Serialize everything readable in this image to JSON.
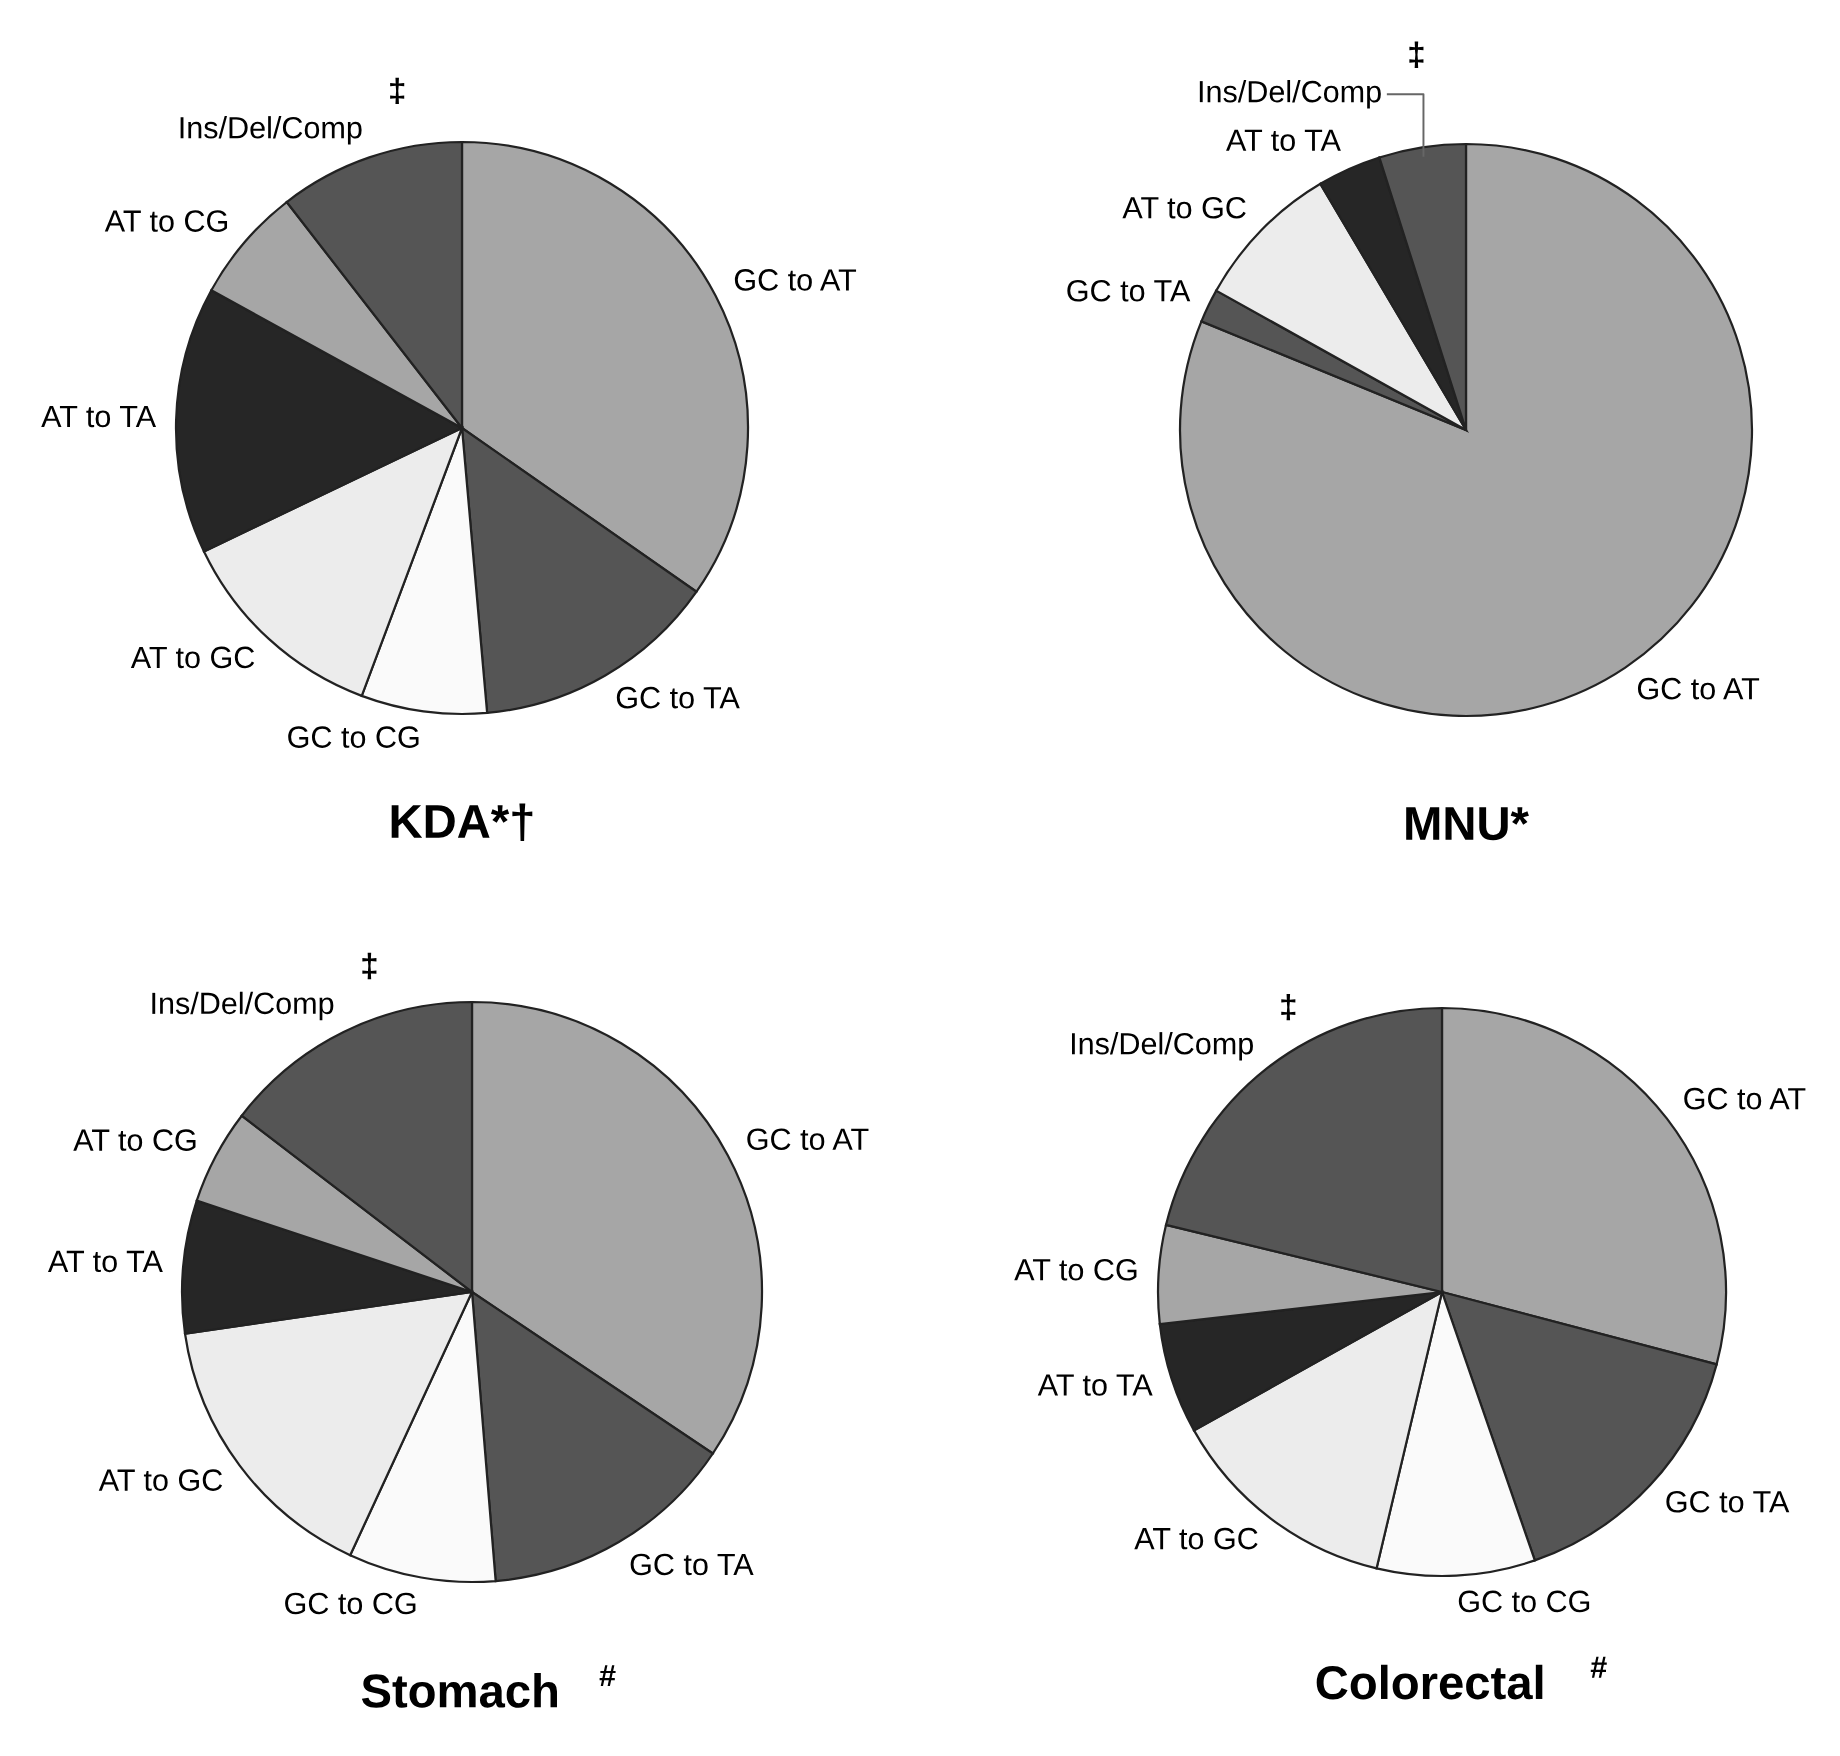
{
  "chart_data": [
    {
      "type": "pie",
      "title": "KDA*†",
      "categories": [
        "GC to AT",
        "GC to TA",
        "GC to CG",
        "AT to GC",
        "AT to TA",
        "AT to CG",
        "Ins/Del/Comp"
      ],
      "values": [
        34.7,
        13.9,
        7.1,
        12.2,
        15.1,
        6.5,
        10.5
      ],
      "colors": [
        "#a6a6a6",
        "#555555",
        "#fafafa",
        "#ececec",
        "#262626",
        "#a6a6a6",
        "#555555"
      ],
      "annotations": [
        "‡"
      ]
    },
    {
      "type": "pie",
      "title": "MNU*",
      "categories": [
        "GC to AT",
        "GC to TA",
        "AT to GC",
        "AT to TA",
        "Ins/Del/Comp"
      ],
      "values": [
        81.2,
        1.9,
        8.4,
        3.6,
        4.9
      ],
      "colors": [
        "#a6a6a6",
        "#555555",
        "#ececec",
        "#262626",
        "#555555"
      ],
      "annotations": [
        "‡"
      ]
    },
    {
      "type": "pie",
      "title": "Stomach$^{#}$",
      "categories": [
        "GC to AT",
        "GC to TA",
        "GC to CG",
        "AT to GC",
        "AT to TA",
        "AT to CG",
        "Ins/Del/Comp"
      ],
      "values": [
        34.4,
        14.3,
        8.2,
        15.8,
        7.4,
        5.3,
        14.6
      ],
      "colors": [
        "#a6a6a6",
        "#555555",
        "#fafafa",
        "#ececec",
        "#262626",
        "#a6a6a6",
        "#555555"
      ],
      "annotations": [
        "‡"
      ]
    },
    {
      "type": "pie",
      "title": "Colorectal$^{#}$",
      "categories": [
        "GC to AT",
        "GC to TA",
        "GC to CG",
        "AT to GC",
        "AT to TA",
        "AT to CG",
        "Ins/Del/Comp"
      ],
      "values": [
        29.1,
        15.6,
        9.0,
        13.2,
        6.3,
        5.6,
        21.2
      ],
      "colors": [
        "#a6a6a6",
        "#555555",
        "#fafafa",
        "#ececec",
        "#262626",
        "#a6a6a6",
        "#555555"
      ],
      "annotations": [
        "‡"
      ]
    }
  ]
}
